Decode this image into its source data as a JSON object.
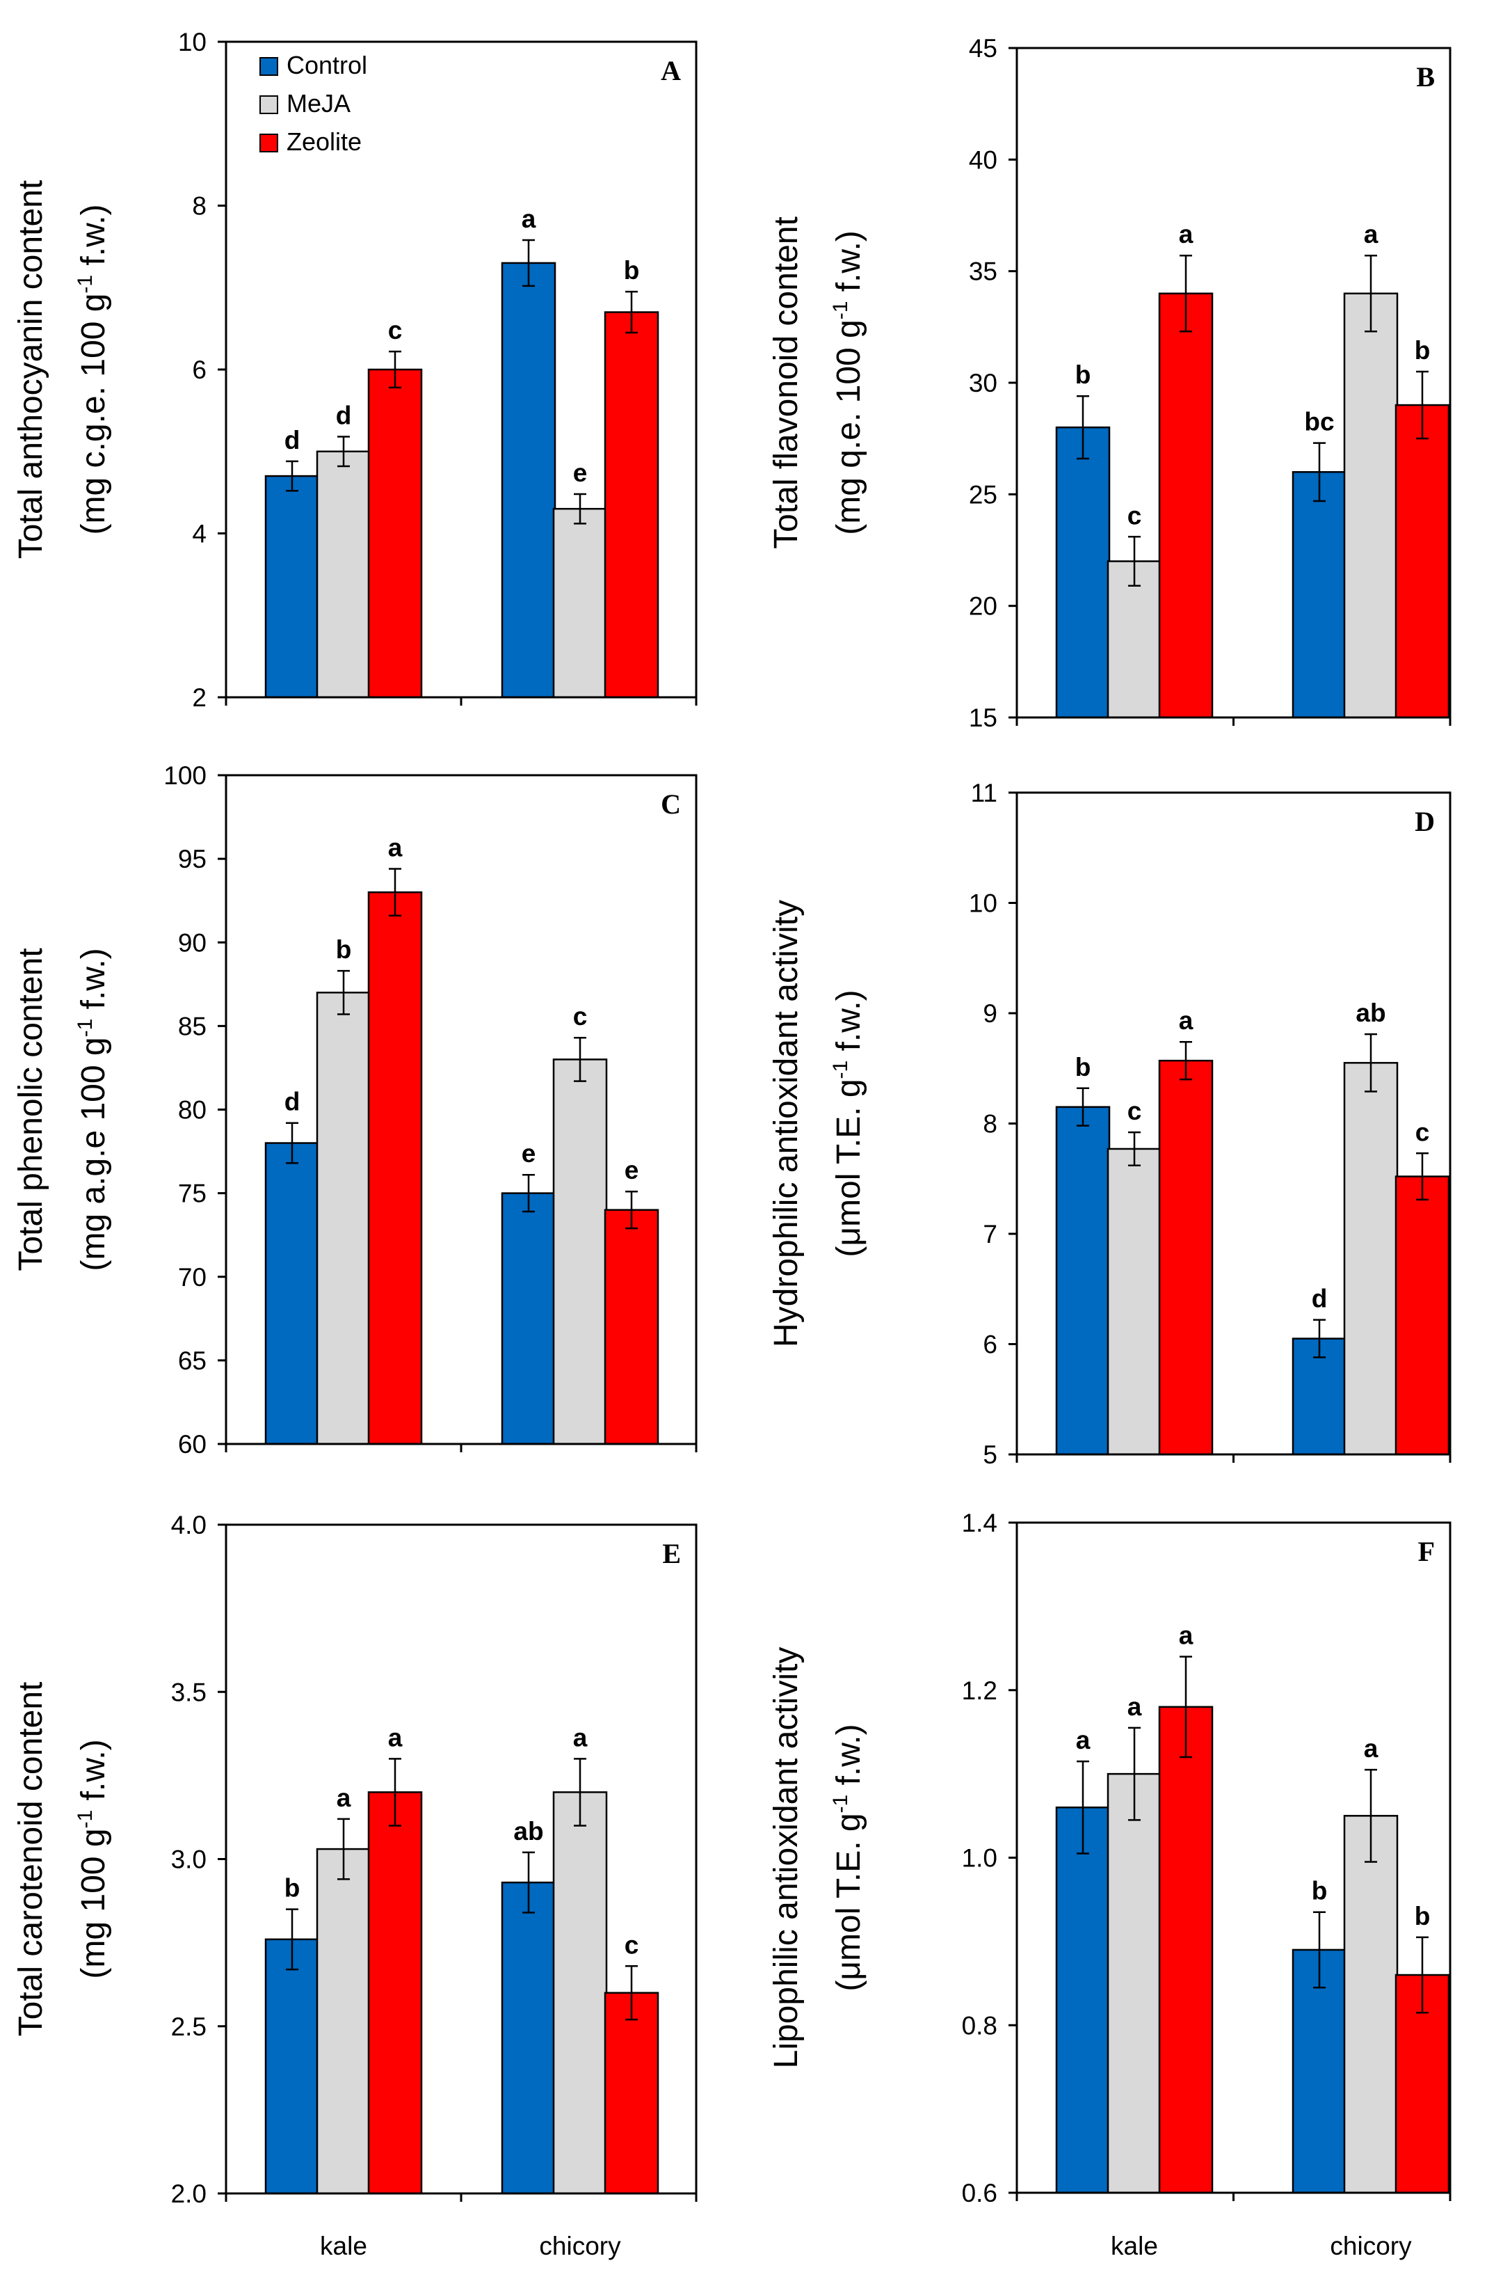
{
  "colors": {
    "Control": "#0069c0",
    "MeJA": "#d9d9d9",
    "Zeolite": "#ff0000",
    "axis": "#000000"
  },
  "legend": [
    "Control",
    "MeJA",
    "Zeolite"
  ],
  "chart_data": [
    {
      "type": "bar",
      "panel": "A",
      "title": "",
      "xlabel": "",
      "ylabel": "Total anthocyanin content",
      "ylabel_unit_pre": "(mg c.g.e. 100 g",
      "ylabel_sup": "-1",
      "ylabel_unit_post": " f.w.)",
      "ylim": [
        2,
        10
      ],
      "yticks": [
        "2",
        "4",
        "6",
        "8",
        "10"
      ],
      "ytick_values": [
        2,
        4,
        6,
        8,
        10
      ],
      "categories": [
        "kale",
        "chicory"
      ],
      "show_category_labels": false,
      "series": [
        {
          "name": "Control",
          "values": [
            4.7,
            7.3
          ],
          "errors": [
            0.18,
            0.28
          ],
          "letters": [
            "d",
            "a"
          ]
        },
        {
          "name": "MeJA",
          "values": [
            5.0,
            4.3
          ],
          "errors": [
            0.18,
            0.18
          ],
          "letters": [
            "d",
            "e"
          ]
        },
        {
          "name": "Zeolite",
          "values": [
            6.0,
            6.7
          ],
          "errors": [
            0.22,
            0.25
          ],
          "letters": [
            "c",
            "b"
          ]
        }
      ]
    },
    {
      "type": "bar",
      "panel": "B",
      "title": "",
      "xlabel": "",
      "ylabel": "Total flavonoid content",
      "ylabel_unit_pre": "(mg q.e. 100 g",
      "ylabel_sup": "-1",
      "ylabel_unit_post": " f.w.)",
      "ylim": [
        15,
        45
      ],
      "yticks": [
        "15",
        "20",
        "25",
        "30",
        "35",
        "40",
        "45"
      ],
      "ytick_values": [
        15,
        20,
        25,
        30,
        35,
        40,
        45
      ],
      "categories": [
        "kale",
        "chicory"
      ],
      "show_category_labels": false,
      "series": [
        {
          "name": "Control",
          "values": [
            28,
            26
          ],
          "errors": [
            1.4,
            1.3
          ],
          "letters": [
            "b",
            "bc"
          ]
        },
        {
          "name": "MeJA",
          "values": [
            22,
            34
          ],
          "errors": [
            1.1,
            1.7
          ],
          "letters": [
            "c",
            "a"
          ]
        },
        {
          "name": "Zeolite",
          "values": [
            34,
            29
          ],
          "errors": [
            1.7,
            1.5
          ],
          "letters": [
            "a",
            "b"
          ]
        }
      ]
    },
    {
      "type": "bar",
      "panel": "C",
      "title": "",
      "xlabel": "",
      "ylabel": "Total phenolic content",
      "ylabel_unit_pre": "(mg a.g.e 100 g",
      "ylabel_sup": "-1",
      "ylabel_unit_post": " f.w.)",
      "ylim": [
        60,
        100
      ],
      "yticks": [
        "60",
        "65",
        "70",
        "75",
        "80",
        "85",
        "90",
        "95",
        "100"
      ],
      "ytick_values": [
        60,
        65,
        70,
        75,
        80,
        85,
        90,
        95,
        100
      ],
      "categories": [
        "kale",
        "chicory"
      ],
      "show_category_labels": false,
      "series": [
        {
          "name": "Control",
          "values": [
            78,
            75
          ],
          "errors": [
            1.2,
            1.1
          ],
          "letters": [
            "d",
            "e"
          ]
        },
        {
          "name": "MeJA",
          "values": [
            87,
            83
          ],
          "errors": [
            1.3,
            1.3
          ],
          "letters": [
            "b",
            "c"
          ]
        },
        {
          "name": "Zeolite",
          "values": [
            93,
            74
          ],
          "errors": [
            1.4,
            1.1
          ],
          "letters": [
            "a",
            "e"
          ]
        }
      ]
    },
    {
      "type": "bar",
      "panel": "D",
      "title": "",
      "xlabel": "",
      "ylabel": "Hydrophilic antioxidant activity",
      "ylabel_unit_pre": "(μmol T.E. g",
      "ylabel_sup": "-1",
      "ylabel_unit_post": " f.w.)",
      "ylim": [
        5,
        11
      ],
      "yticks": [
        "5",
        "6",
        "7",
        "8",
        "9",
        "10",
        "11"
      ],
      "ytick_values": [
        5,
        6,
        7,
        8,
        9,
        10,
        11
      ],
      "categories": [
        "kale",
        "chicory"
      ],
      "show_category_labels": false,
      "series": [
        {
          "name": "Control",
          "values": [
            8.15,
            6.05
          ],
          "errors": [
            0.17,
            0.17
          ],
          "letters": [
            "b",
            "d"
          ]
        },
        {
          "name": "MeJA",
          "values": [
            7.77,
            8.55
          ],
          "errors": [
            0.15,
            0.26
          ],
          "letters": [
            "c",
            "ab"
          ]
        },
        {
          "name": "Zeolite",
          "values": [
            8.57,
            7.52
          ],
          "errors": [
            0.17,
            0.21
          ],
          "letters": [
            "a",
            "c"
          ]
        }
      ]
    },
    {
      "type": "bar",
      "panel": "E",
      "title": "",
      "xlabel": "",
      "ylabel": "Total carotenoid content",
      "ylabel_unit_pre": "(mg 100 g",
      "ylabel_sup": "-1",
      "ylabel_unit_post": " f.w.)",
      "ylim": [
        2.0,
        4.0
      ],
      "yticks": [
        "2.0",
        "2.5",
        "3.0",
        "3.5",
        "4.0"
      ],
      "ytick_values": [
        2.0,
        2.5,
        3.0,
        3.5,
        4.0
      ],
      "categories": [
        "kale",
        "chicory"
      ],
      "show_category_labels": true,
      "series": [
        {
          "name": "Control",
          "values": [
            2.76,
            2.93
          ],
          "errors": [
            0.09,
            0.09
          ],
          "letters": [
            "b",
            "ab"
          ]
        },
        {
          "name": "MeJA",
          "values": [
            3.03,
            3.2
          ],
          "errors": [
            0.09,
            0.1
          ],
          "letters": [
            "a",
            "a"
          ]
        },
        {
          "name": "Zeolite",
          "values": [
            3.2,
            2.6
          ],
          "errors": [
            0.1,
            0.08
          ],
          "letters": [
            "a",
            "c"
          ]
        }
      ]
    },
    {
      "type": "bar",
      "panel": "F",
      "title": "",
      "xlabel": "",
      "ylabel": "Lipophilic antioxidant activity",
      "ylabel_unit_pre": "(μmol T.E. g",
      "ylabel_sup": "-1",
      "ylabel_unit_post": " f.w.)",
      "ylim": [
        0.6,
        1.4
      ],
      "yticks": [
        "0.6",
        "0.8",
        "1.0",
        "1.2",
        "1.4"
      ],
      "ytick_values": [
        0.6,
        0.8,
        1.0,
        1.2,
        1.4
      ],
      "categories": [
        "kale",
        "chicory"
      ],
      "show_category_labels": true,
      "series": [
        {
          "name": "Control",
          "values": [
            1.06,
            0.89
          ],
          "errors": [
            0.055,
            0.045
          ],
          "letters": [
            "a",
            "b"
          ]
        },
        {
          "name": "MeJA",
          "values": [
            1.1,
            1.05
          ],
          "errors": [
            0.055,
            0.055
          ],
          "letters": [
            "a",
            "a"
          ]
        },
        {
          "name": "Zeolite",
          "values": [
            1.18,
            0.86
          ],
          "errors": [
            0.06,
            0.045
          ],
          "letters": [
            "a",
            "b"
          ]
        }
      ]
    }
  ]
}
